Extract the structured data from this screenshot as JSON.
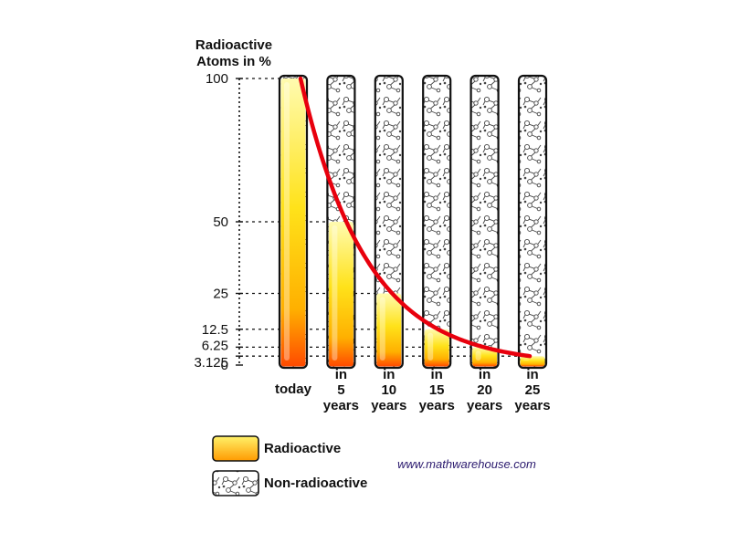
{
  "chart_data": {
    "type": "bar",
    "ylabel_lines": [
      "Radioactive",
      "Atoms in %"
    ],
    "categories": [
      {
        "lines": [
          "today"
        ]
      },
      {
        "lines": [
          "in",
          "5",
          "years"
        ]
      },
      {
        "lines": [
          "in",
          "10",
          "years"
        ]
      },
      {
        "lines": [
          "in",
          "15",
          "years"
        ]
      },
      {
        "lines": [
          "in",
          "20",
          "years"
        ]
      },
      {
        "lines": [
          "in",
          "25",
          "years"
        ]
      }
    ],
    "values": [
      100,
      50,
      25,
      12.5,
      6.25,
      3.125
    ],
    "ylim": [
      0,
      100
    ],
    "yticks": [
      {
        "value": 0,
        "label": "0"
      },
      {
        "value": 3.125,
        "label": "3.125"
      },
      {
        "value": 6.25,
        "label": "6.25"
      },
      {
        "value": 12.5,
        "label": "12.5"
      },
      {
        "value": 25,
        "label": "25"
      },
      {
        "value": 50,
        "label": "50"
      },
      {
        "value": 100,
        "label": "100"
      }
    ],
    "curve": {
      "name": "decay curve",
      "color": "#e8000d"
    },
    "legend": [
      {
        "label": "Radioactive",
        "kind": "radioactive"
      },
      {
        "label": "Non-radioactive",
        "kind": "non-radioactive"
      }
    ]
  },
  "watermark": "www.mathwarehouse.com",
  "colors": {
    "curve": "#e8000d",
    "fill_top": "#fff36a",
    "fill_mid": "#ffc800",
    "fill_bottom": "#ff5a00",
    "outline": "#111111"
  }
}
